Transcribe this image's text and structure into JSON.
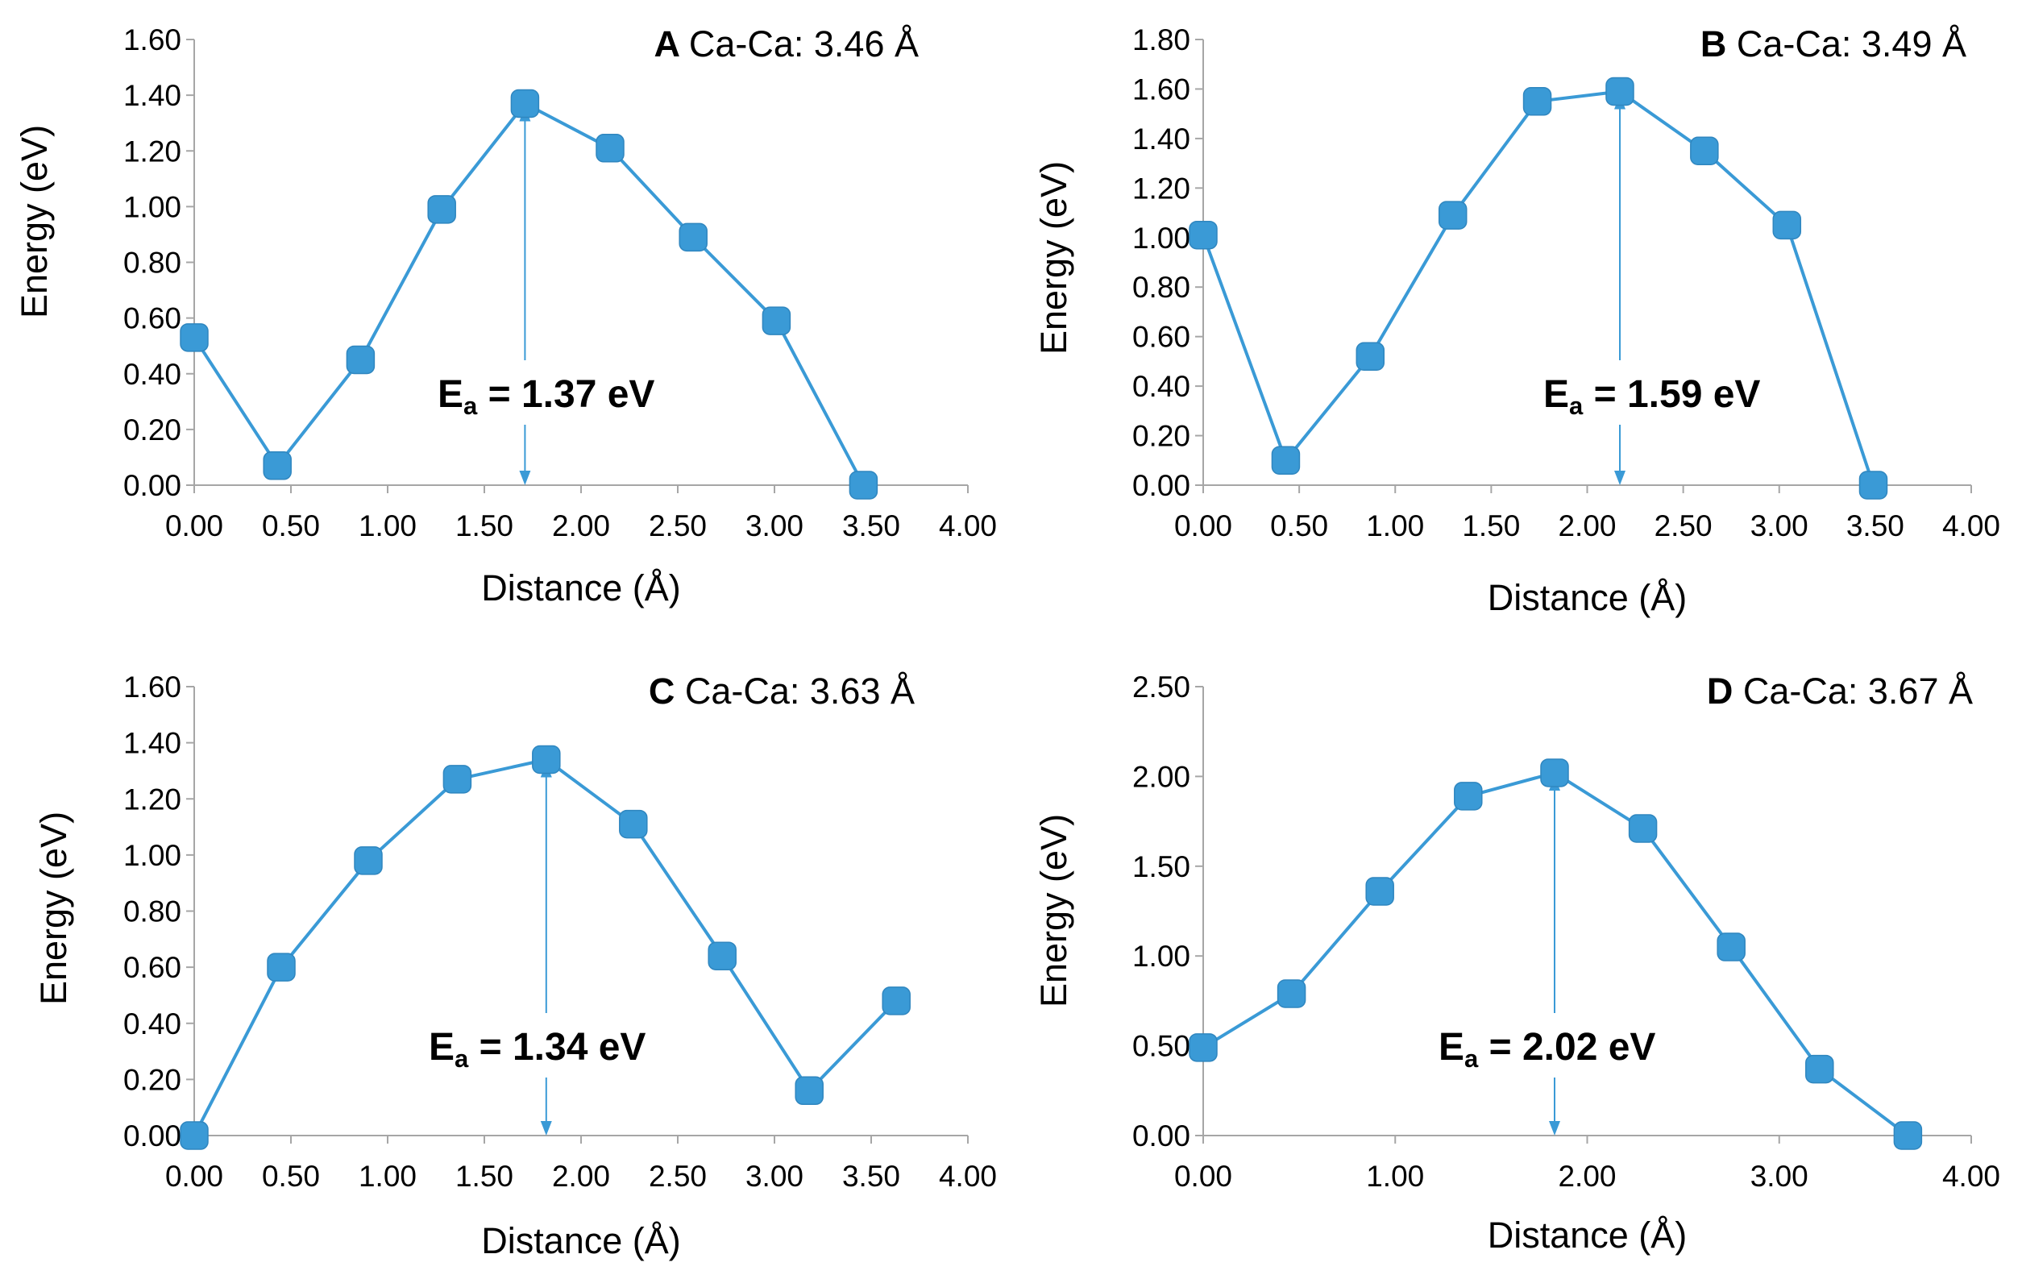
{
  "chart_data": [
    {
      "type": "line",
      "panel": "A",
      "title": "Ca-Ca: 3.46 Å",
      "xlabel": "Distance (Å)",
      "ylabel": "Energy (eV)",
      "xlim": [
        0,
        4
      ],
      "ylim": [
        0,
        1.6
      ],
      "xticks": [
        "0.00",
        "0.50",
        "1.00",
        "1.50",
        "2.00",
        "2.50",
        "3.00",
        "3.50",
        "4.00"
      ],
      "yticks": [
        "0.00",
        "0.20",
        "0.40",
        "0.60",
        "0.80",
        "1.00",
        "1.20",
        "1.40",
        "1.60"
      ],
      "x": [
        0.0,
        0.43,
        0.86,
        1.28,
        1.71,
        2.15,
        2.58,
        3.01,
        3.46
      ],
      "y": [
        0.53,
        0.07,
        0.45,
        0.99,
        1.37,
        1.21,
        0.89,
        0.59,
        0.0
      ],
      "annotation": {
        "prefix": "E",
        "subscript": "a",
        "text": " = 1.37 eV",
        "x": 1.71,
        "y": 1.37
      }
    },
    {
      "type": "line",
      "panel": "B",
      "title": "Ca-Ca: 3.49 Å",
      "xlabel": "Distance (Å)",
      "ylabel": "Energy (eV)",
      "xlim": [
        0,
        4
      ],
      "ylim": [
        0,
        1.8
      ],
      "xticks": [
        "0.00",
        "0.50",
        "1.00",
        "1.50",
        "2.00",
        "2.50",
        "3.00",
        "3.50",
        "4.00"
      ],
      "yticks": [
        "0.00",
        "0.20",
        "0.40",
        "0.60",
        "0.80",
        "1.00",
        "1.20",
        "1.40",
        "1.60",
        "1.80"
      ],
      "x": [
        0.0,
        0.43,
        0.87,
        1.3,
        1.74,
        2.17,
        2.61,
        3.04,
        3.49
      ],
      "y": [
        1.01,
        0.1,
        0.52,
        1.09,
        1.55,
        1.59,
        1.35,
        1.05,
        0.0
      ],
      "annotation": {
        "prefix": "E",
        "subscript": "a",
        "text": " = 1.59 eV",
        "x": 2.17,
        "y": 1.59
      }
    },
    {
      "type": "line",
      "panel": "C",
      "title": "Ca-Ca: 3.63 Å",
      "xlabel": "Distance (Å)",
      "ylabel": "Energy (eV)",
      "xlim": [
        0,
        4
      ],
      "ylim": [
        0,
        1.6
      ],
      "xticks": [
        "0.00",
        "0.50",
        "1.00",
        "1.50",
        "2.00",
        "2.50",
        "3.00",
        "3.50",
        "4.00"
      ],
      "yticks": [
        "0.00",
        "0.20",
        "0.40",
        "0.60",
        "0.80",
        "1.00",
        "1.20",
        "1.40",
        "1.60"
      ],
      "x": [
        0.0,
        0.45,
        0.9,
        1.36,
        1.82,
        2.27,
        2.73,
        3.18,
        3.63
      ],
      "y": [
        0.0,
        0.6,
        0.98,
        1.27,
        1.34,
        1.11,
        0.64,
        0.16,
        0.48
      ],
      "annotation": {
        "prefix": "E",
        "subscript": "a",
        "text": " = 1.34 eV",
        "x": 1.82,
        "y": 1.34
      }
    },
    {
      "type": "line",
      "panel": "D",
      "title": "Ca-Ca: 3.67 Å",
      "xlabel": "Distance (Å)",
      "ylabel": "Energy (eV)",
      "xlim": [
        0,
        4
      ],
      "ylim": [
        0,
        2.5
      ],
      "xticks": [
        "0.00",
        "1.00",
        "2.00",
        "3.00",
        "4.00"
      ],
      "yticks": [
        "0.00",
        "0.50",
        "1.00",
        "1.50",
        "2.00",
        "2.50"
      ],
      "x": [
        0.0,
        0.46,
        0.92,
        1.38,
        1.83,
        2.29,
        2.75,
        3.21,
        3.67
      ],
      "y": [
        0.49,
        0.79,
        1.36,
        1.89,
        2.02,
        1.71,
        1.05,
        0.37,
        0.0
      ],
      "annotation": {
        "prefix": "E",
        "subscript": "a",
        "text": " = 2.02 eV",
        "x": 1.83,
        "y": 2.02
      }
    }
  ],
  "colors": {
    "series": "#3a9ad6",
    "marker": "#3a9ad6",
    "axis": "#a6a6a6",
    "text": "#000000"
  }
}
